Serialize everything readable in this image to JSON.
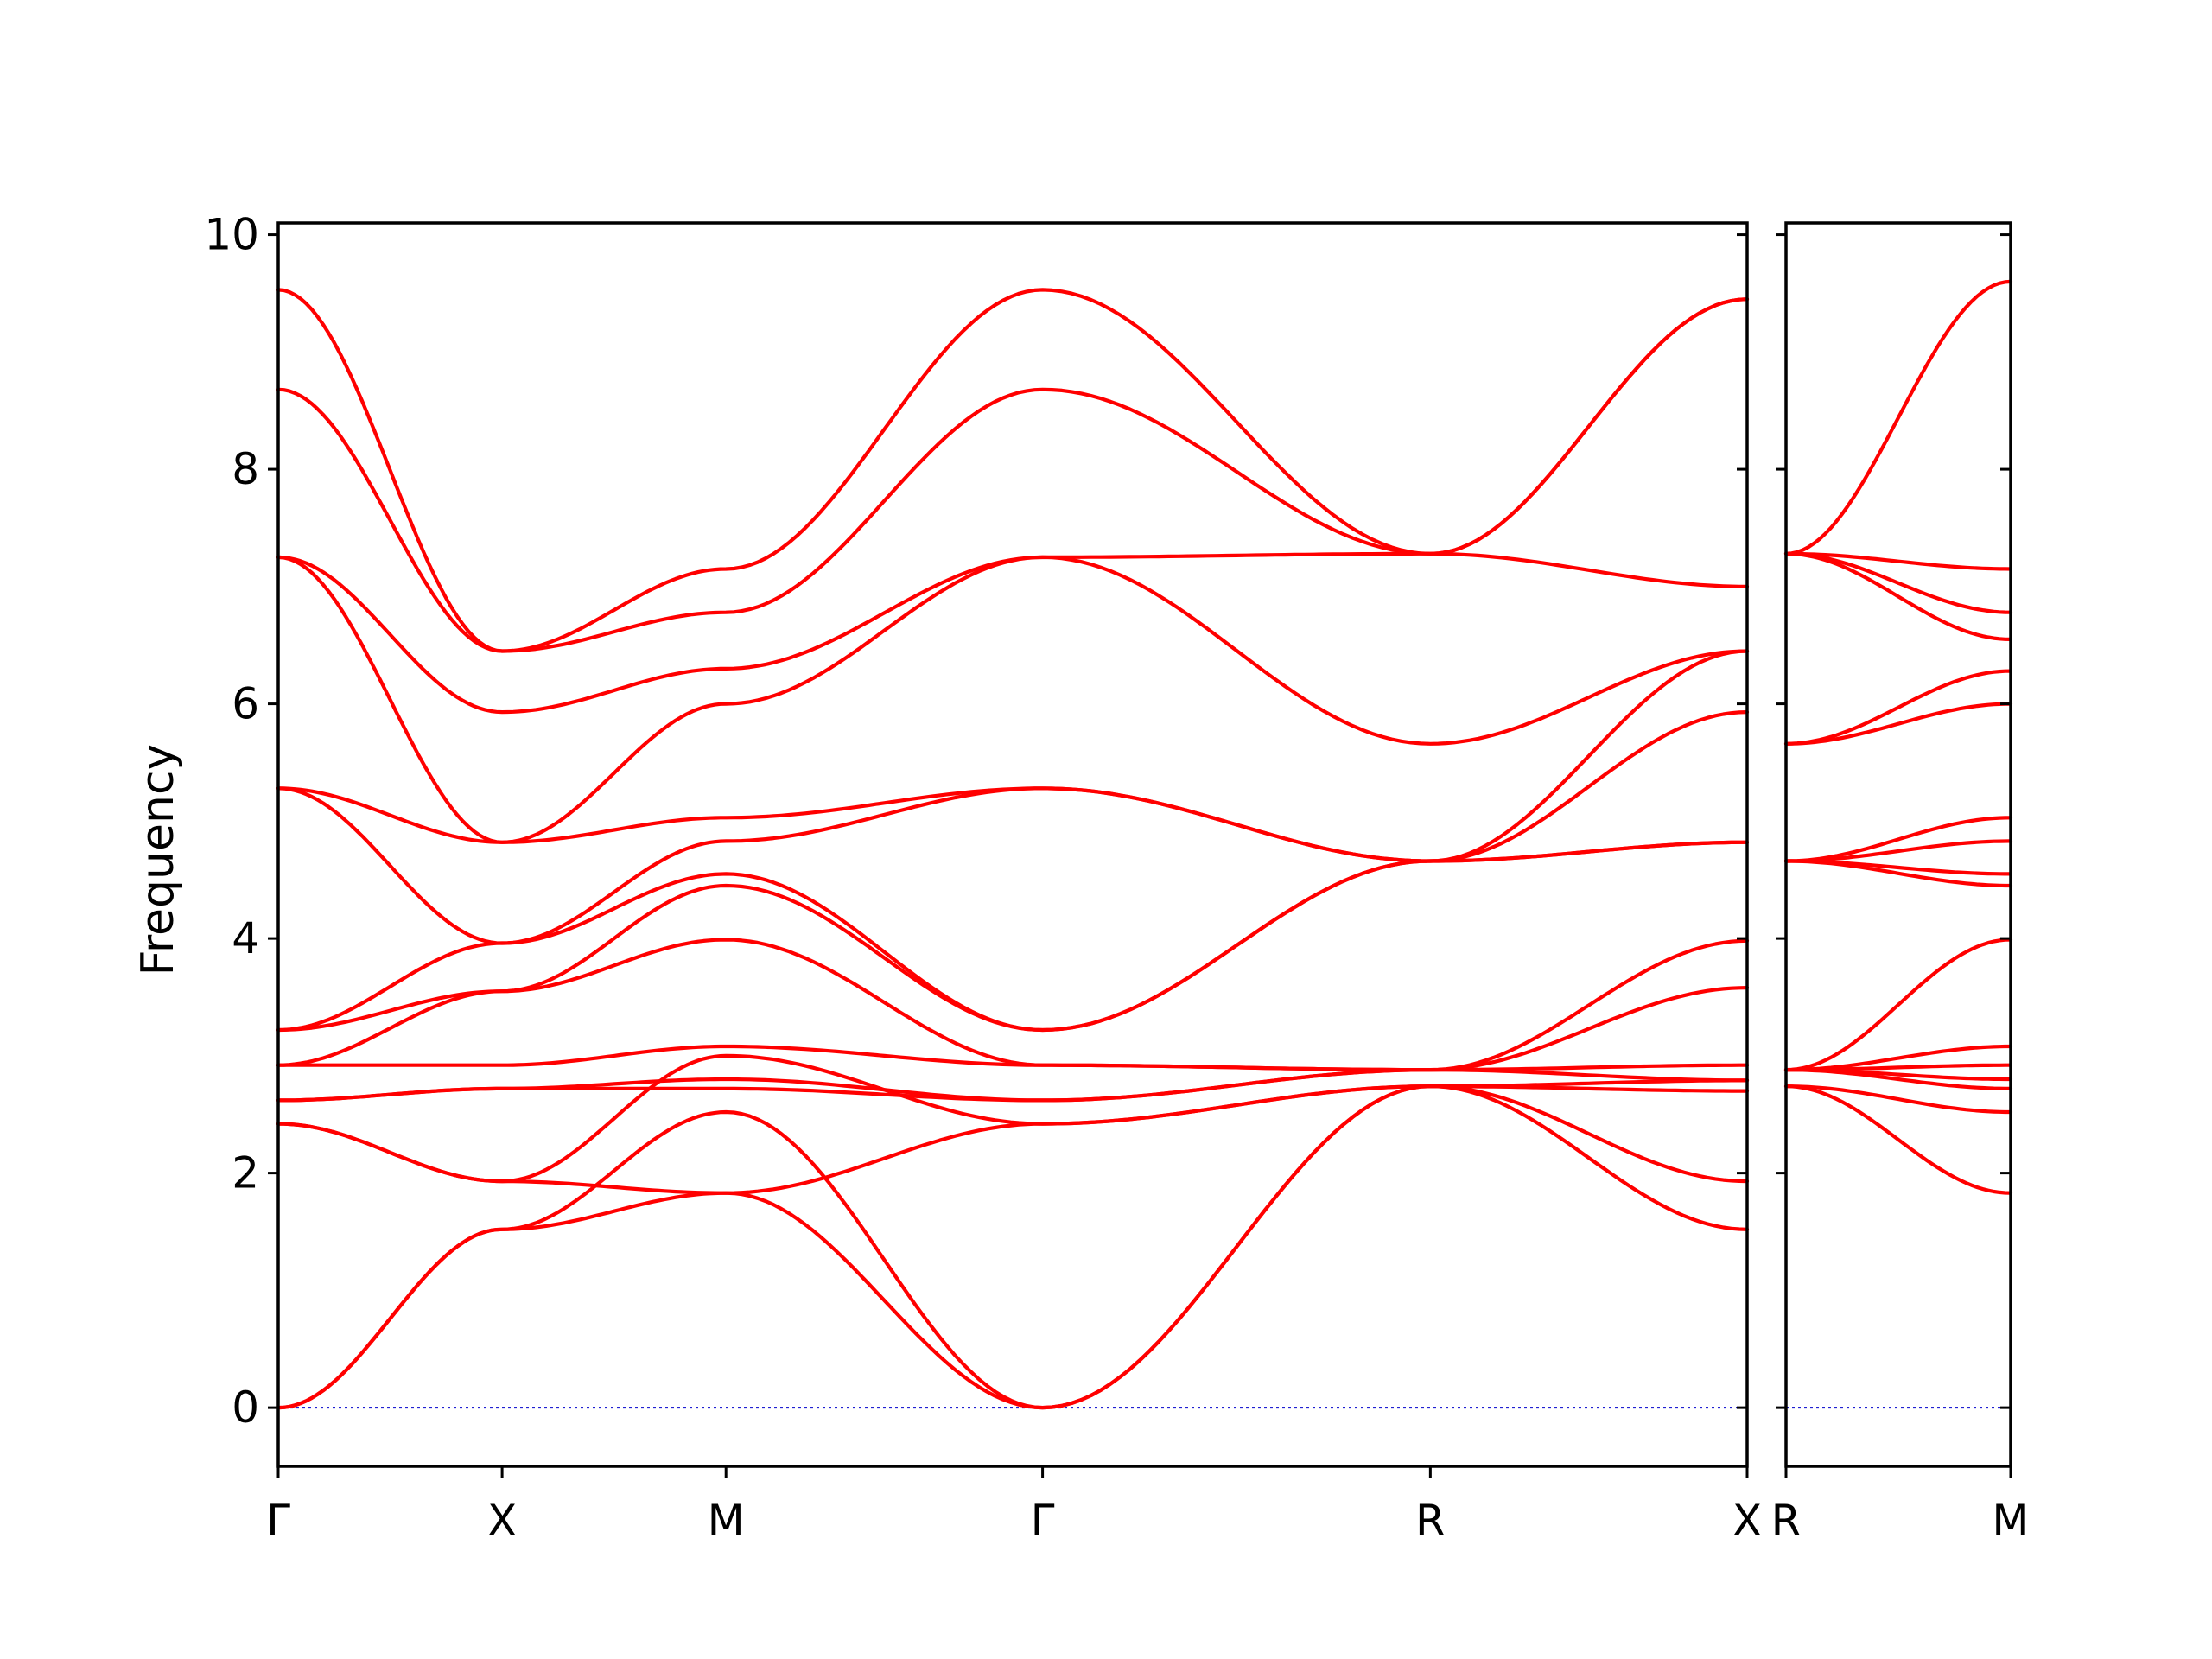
{
  "chart_data": {
    "type": "line",
    "ylabel": "Frequency",
    "xlabel": "",
    "title": "",
    "ylim": [
      -0.5,
      10.1
    ],
    "yticks": [
      0,
      2,
      4,
      6,
      8,
      10
    ],
    "grid": false,
    "colors": {
      "bands": "#ff0000",
      "zero_line": "#0000cc",
      "axes": "#000000"
    },
    "panels": [
      {
        "path_labels": [
          "Γ",
          "X",
          "M",
          "Γ",
          "R",
          "X"
        ],
        "x": [
          0,
          1,
          2,
          3.414,
          5.146,
          6.561
        ],
        "series": [
          {
            "values": [
              0,
              1.52,
              1.83,
              0,
              2.74,
              1.52
            ]
          },
          {
            "values": [
              0,
              1.52,
              2.52,
              0,
              2.74,
              1.93
            ]
          },
          {
            "values": [
              2.42,
              1.93,
              1.83,
              2.42,
              2.74,
              2.7
            ]
          },
          {
            "values": [
              2.42,
              1.93,
              3.0,
              2.42,
              2.74,
              2.79
            ]
          },
          {
            "values": [
              2.62,
              2.72,
              2.72,
              2.62,
              2.88,
              2.79
            ]
          },
          {
            "values": [
              2.62,
              2.72,
              2.8,
              2.62,
              2.88,
              2.92
            ]
          },
          {
            "values": [
              2.92,
              2.92,
              3.08,
              2.92,
              2.88,
              3.58
            ]
          },
          {
            "values": [
              2.92,
              3.55,
              3.99,
              2.92,
              2.88,
              3.98
            ]
          },
          {
            "values": [
              3.22,
              3.55,
              4.45,
              3.22,
              4.66,
              4.82
            ]
          },
          {
            "values": [
              3.22,
              3.96,
              4.55,
              3.22,
              4.66,
              4.82
            ]
          },
          {
            "values": [
              5.28,
              3.96,
              4.83,
              5.28,
              4.66,
              5.93
            ]
          },
          {
            "values": [
              5.28,
              4.82,
              5.03,
              5.28,
              4.66,
              6.45
            ]
          },
          {
            "values": [
              7.25,
              4.82,
              6.0,
              7.25,
              5.66,
              6.45
            ]
          },
          {
            "values": [
              7.25,
              5.93,
              6.3,
              7.25,
              7.28,
              7.0
            ]
          },
          {
            "values": [
              8.68,
              6.45,
              6.78,
              8.68,
              7.28,
              9.45
            ]
          },
          {
            "values": [
              9.53,
              6.45,
              7.15,
              9.53,
              7.28,
              9.45
            ]
          }
        ]
      },
      {
        "path_labels": [
          "R",
          "M"
        ],
        "x": [
          0,
          1
        ],
        "series": [
          {
            "values": [
              2.74,
              1.83
            ]
          },
          {
            "values": [
              2.74,
              2.52
            ]
          },
          {
            "values": [
              2.88,
              2.72
            ]
          },
          {
            "values": [
              2.88,
              2.8
            ]
          },
          {
            "values": [
              2.88,
              2.92
            ]
          },
          {
            "values": [
              2.88,
              3.08
            ]
          },
          {
            "values": [
              2.88,
              3.99
            ]
          },
          {
            "values": [
              4.66,
              4.45
            ]
          },
          {
            "values": [
              4.66,
              4.55
            ]
          },
          {
            "values": [
              4.66,
              4.83
            ]
          },
          {
            "values": [
              4.66,
              5.03
            ]
          },
          {
            "values": [
              5.66,
              6.0
            ]
          },
          {
            "values": [
              5.66,
              6.28
            ]
          },
          {
            "values": [
              7.28,
              6.55
            ]
          },
          {
            "values": [
              7.28,
              6.78
            ]
          },
          {
            "values": [
              7.28,
              7.15
            ]
          },
          {
            "values": [
              7.28,
              9.6
            ]
          }
        ]
      }
    ]
  }
}
